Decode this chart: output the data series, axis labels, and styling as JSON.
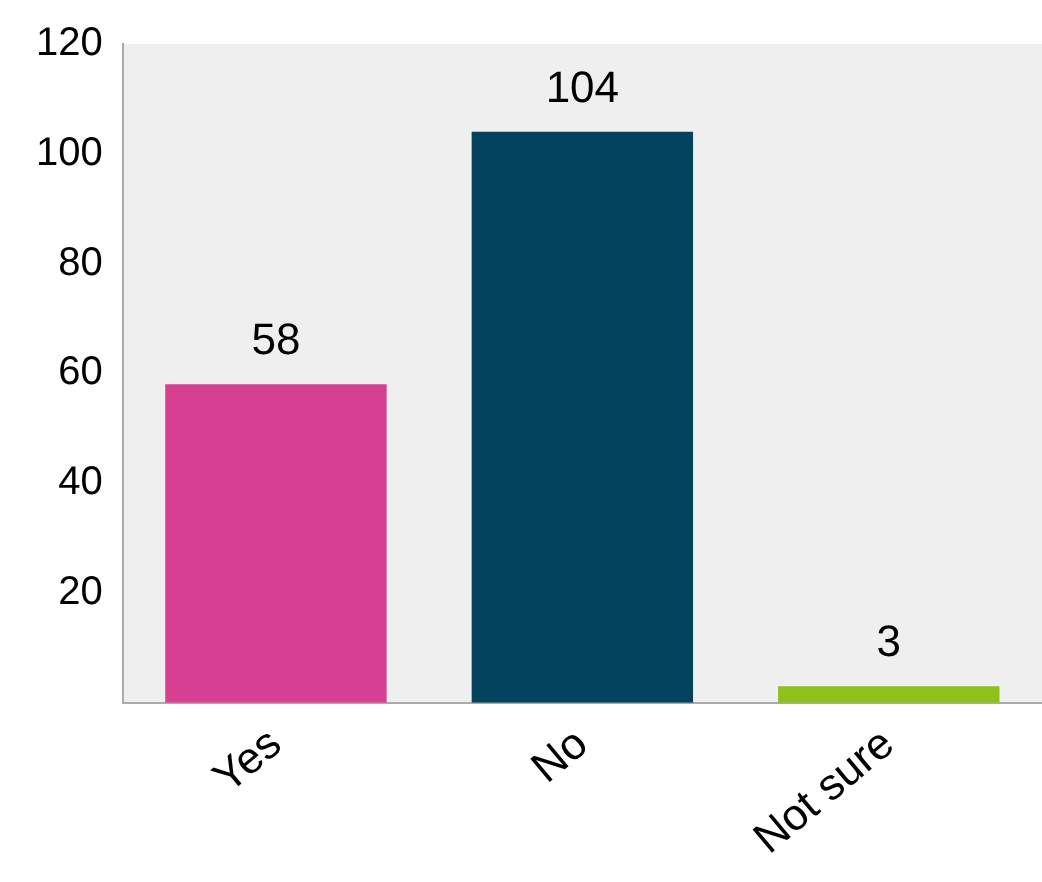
{
  "chart_data": {
    "type": "bar",
    "categories": [
      "Yes",
      "No",
      "Not sure"
    ],
    "values": [
      58,
      104,
      3
    ],
    "colors": [
      "#d63f92",
      "#03435e",
      "#8cc21a"
    ],
    "ylim": [
      0,
      120
    ],
    "yticks": [
      20,
      40,
      60,
      80,
      100,
      120
    ],
    "grid": false,
    "legend": false,
    "data_labels": true
  }
}
